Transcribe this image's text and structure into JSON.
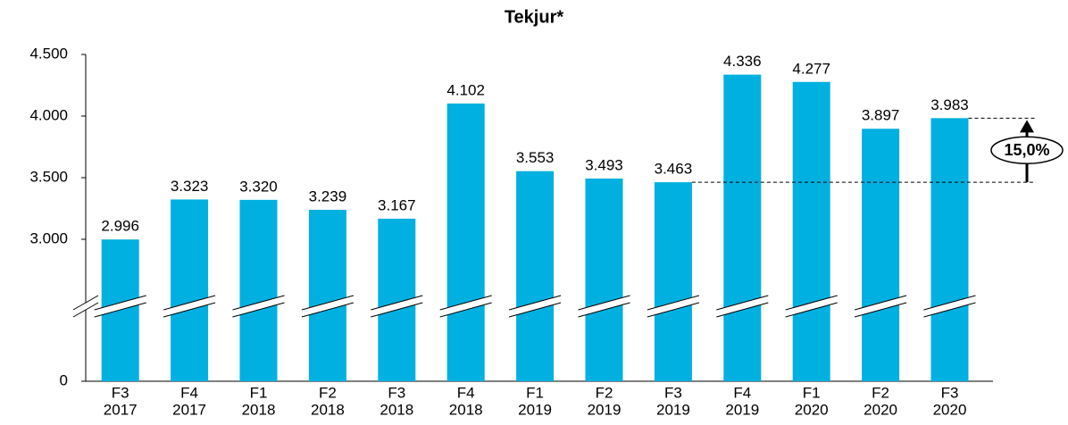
{
  "chart_data": {
    "type": "bar",
    "title": "Tekjur*",
    "categories": [
      [
        "F3",
        "2017"
      ],
      [
        "F4",
        "2017"
      ],
      [
        "F1",
        "2018"
      ],
      [
        "F2",
        "2018"
      ],
      [
        "F3",
        "2018"
      ],
      [
        "F4",
        "2018"
      ],
      [
        "F1",
        "2019"
      ],
      [
        "F2",
        "2019"
      ],
      [
        "F3",
        "2019"
      ],
      [
        "F4",
        "2019"
      ],
      [
        "F1",
        "2020"
      ],
      [
        "F2",
        "2020"
      ],
      [
        "F3",
        "2020"
      ]
    ],
    "values": [
      2996,
      3323,
      3320,
      3239,
      3167,
      4102,
      3553,
      3493,
      3463,
      4336,
      4277,
      3897,
      3983
    ],
    "value_labels": [
      "2.996",
      "3.323",
      "3.320",
      "3.239",
      "3.167",
      "4.102",
      "3.553",
      "3.493",
      "3.463",
      "4.336",
      "4.277",
      "3.897",
      "3.983"
    ],
    "color": "#00b0e0",
    "ylim": [
      0,
      4500
    ],
    "yticks": [
      0,
      {
        "value": 3000,
        "label": "3.000"
      },
      {
        "value": 3500,
        "label": "3.500"
      },
      {
        "value": 4000,
        "label": "4.000"
      },
      {
        "value": 4500,
        "label": "4.500"
      }
    ],
    "annotation": "15,0%"
  }
}
